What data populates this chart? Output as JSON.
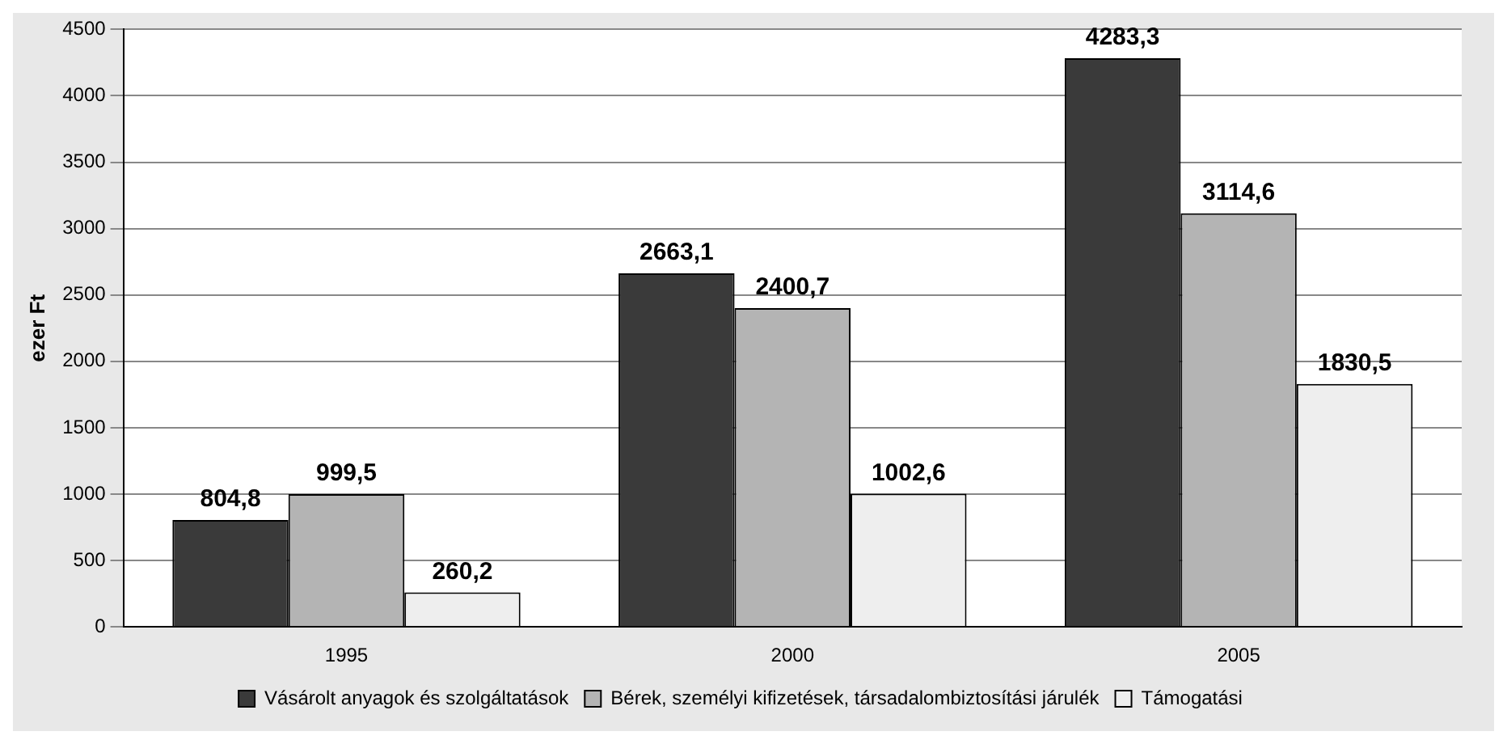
{
  "chart_data": {
    "type": "bar",
    "ylabel": "ezer Ft",
    "categories": [
      "1995",
      "2000",
      "2005"
    ],
    "series": [
      {
        "name": "Vásárolt anyagok és szolgáltatások",
        "color": "#3a3a3a",
        "values": [
          804.8,
          2663.1,
          4283.3
        ],
        "value_labels": [
          "804,8",
          "2663,1",
          "4283,3"
        ]
      },
      {
        "name": "Bérek, személyi kifizetések, társadalombiztosítási járulék",
        "color": "#b4b4b4",
        "values": [
          999.5,
          2400.7,
          3114.6
        ],
        "value_labels": [
          "999,5",
          "2400,7",
          "3114,6"
        ]
      },
      {
        "name": "Támogatási",
        "color": "#eeeeee",
        "values": [
          260.2,
          1002.6,
          1830.5
        ],
        "value_labels": [
          "260,2",
          "1002,6",
          "1830,5"
        ]
      }
    ],
    "ylim": [
      0,
      4500
    ],
    "yticks": [
      0,
      500,
      1000,
      1500,
      2000,
      2500,
      3000,
      3500,
      4000,
      4500
    ],
    "grid": "y",
    "legend": "bottom"
  }
}
